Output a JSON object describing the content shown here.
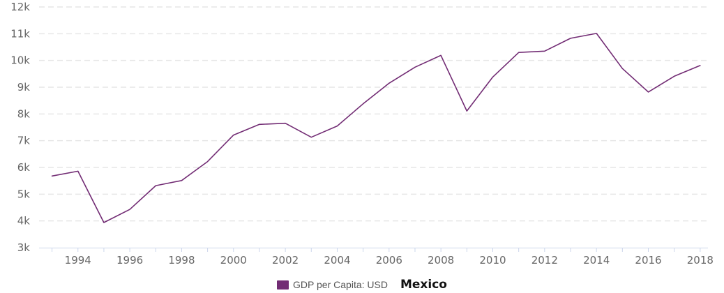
{
  "chart_data": {
    "type": "line",
    "x": [
      1993,
      1994,
      1995,
      1996,
      1997,
      1998,
      1999,
      2000,
      2001,
      2002,
      2003,
      2004,
      2005,
      2006,
      2007,
      2008,
      2009,
      2010,
      2011,
      2012,
      2013,
      2014,
      2015,
      2016,
      2017,
      2018
    ],
    "series": [
      {
        "name": "GDP per Capita: USD",
        "values": [
          5680,
          5860,
          3940,
          4430,
          5320,
          5510,
          6220,
          7210,
          7610,
          7650,
          7130,
          7550,
          8380,
          9150,
          9750,
          10190,
          8110,
          9380,
          10300,
          10350,
          10830,
          11010,
          9700,
          8820,
          9410,
          9810
        ],
        "color": "#722c74"
      }
    ],
    "x_ticks": [
      "1994",
      "1996",
      "1998",
      "2000",
      "2002",
      "2004",
      "2006",
      "2008",
      "2010",
      "2012",
      "2014",
      "2016",
      "2018"
    ],
    "x_tick_values": [
      1994,
      1996,
      1998,
      2000,
      2002,
      2004,
      2006,
      2008,
      2010,
      2012,
      2014,
      2016,
      2018
    ],
    "y_ticks": [
      "3k",
      "4k",
      "5k",
      "6k",
      "7k",
      "8k",
      "9k",
      "10k",
      "11k",
      "12k"
    ],
    "y_tick_values": [
      3000,
      4000,
      5000,
      6000,
      7000,
      8000,
      9000,
      10000,
      11000,
      12000
    ],
    "xlim": [
      1992.5,
      2018.3
    ],
    "ylim": [
      3000,
      12000
    ],
    "grid": true,
    "legend_position": "bottom-center"
  },
  "legend": {
    "series_label": "GDP per Capita: USD",
    "country": "Mexico",
    "swatch_color": "#722c74"
  },
  "colors": {
    "line": "#722c74",
    "grid": "#e6e6e6",
    "axis": "#ccd6eb",
    "tick_text": "#666666"
  }
}
